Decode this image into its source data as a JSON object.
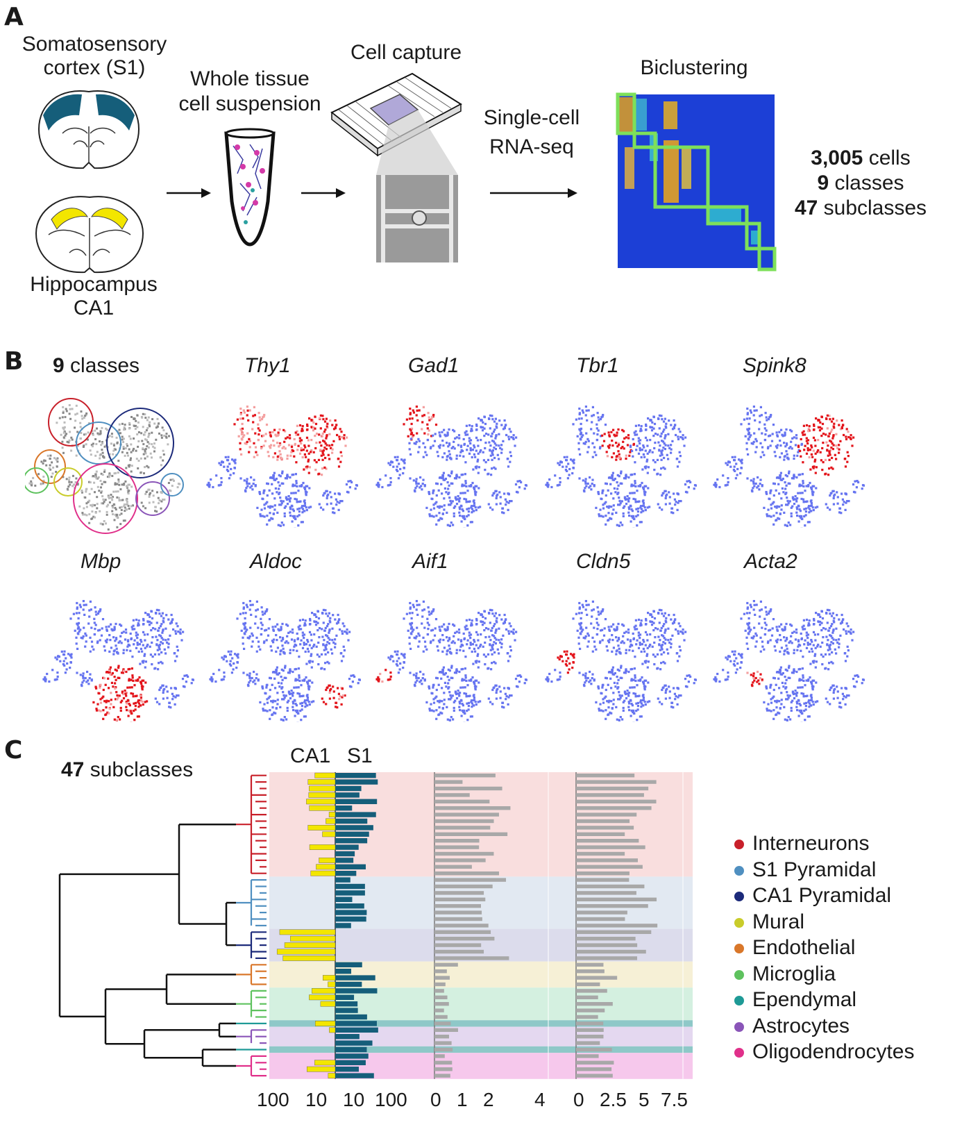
{
  "panelA": {
    "letter": "A",
    "tissue_s1": [
      "Somatosensory",
      "cortex (S1)"
    ],
    "tissue_ca1": [
      "Hippocampus",
      "CA1"
    ],
    "suspension": [
      "Whole tissue",
      "cell suspension"
    ],
    "capture": "Cell capture",
    "seq": [
      "Single-cell",
      "RNA-seq"
    ],
    "bicluster": "Biclustering",
    "stats": [
      {
        "num": "3,005",
        "text": " cells"
      },
      {
        "num": "9",
        "text": " classes"
      },
      {
        "num": "47",
        "text": " subclasses"
      }
    ],
    "colors": {
      "s1": "#155e7a",
      "ca1": "#f3e600",
      "heatmap_bg": "#1c3fd6",
      "bicluster_box": "#7ee05a"
    }
  },
  "panelB": {
    "letter": "B",
    "classes_label": {
      "num": "9",
      "text": " classes"
    },
    "genes_row1": [
      "Thy1",
      "Gad1",
      "Tbr1",
      "Spink8"
    ],
    "genes_row2": [
      "Mbp",
      "Aldoc",
      "Aif1",
      "Cldn5",
      "Acta2"
    ],
    "colors": {
      "low": "#6674f0",
      "high": "#e3141b"
    }
  },
  "panelC": {
    "letter": "C",
    "subclasses_label": {
      "num": "47",
      "text": " subclasses"
    },
    "col_headers": [
      "CA1",
      "S1"
    ],
    "axis_ticks_count": [
      "100",
      "10",
      "10",
      "100"
    ],
    "axis_ticks_mid": [
      "0",
      "1",
      "2",
      "4"
    ],
    "axis_ticks_right": [
      "0",
      "2.5",
      "5",
      "7.5"
    ],
    "legend": [
      {
        "label": "Interneurons",
        "color": "#c8202a"
      },
      {
        "label": "S1 Pyramidal",
        "color": "#4f8fc0"
      },
      {
        "label": "CA1 Pyramidal",
        "color": "#1c2a7a"
      },
      {
        "label": "Mural",
        "color": "#c9cc2a"
      },
      {
        "label": "Endothelial",
        "color": "#d9772a"
      },
      {
        "label": "Microglia",
        "color": "#5ec25e"
      },
      {
        "label": "Ependymal",
        "color": "#1e9a96"
      },
      {
        "label": "Astrocytes",
        "color": "#8a55b8"
      },
      {
        "label": "Oligodendrocytes",
        "color": "#e0308a"
      }
    ],
    "bar_colors": {
      "ca1": "#f3e600",
      "s1": "#155e7a",
      "gray": "#a8a8a8"
    }
  }
}
